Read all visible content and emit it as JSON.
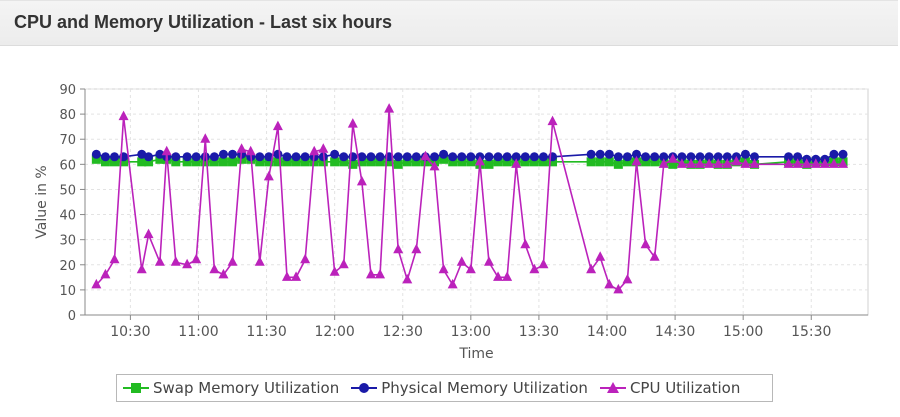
{
  "panel": {
    "title": "CPU and Memory Utilization - Last six hours"
  },
  "colors": {
    "swap": "#22bb22",
    "physical": "#1a1aa8",
    "cpu": "#bb22bb",
    "grid": "#e3e3e3",
    "axis": "#888888",
    "text": "#555555"
  },
  "chart_data": {
    "type": "line",
    "xlabel": "Time",
    "ylabel": "Value in %",
    "ylim": [
      0,
      90
    ],
    "yticks": [
      0,
      10,
      20,
      30,
      40,
      50,
      60,
      70,
      80,
      90
    ],
    "xlim": [
      "10:10",
      "15:55"
    ],
    "xticks": [
      "10:30",
      "11:00",
      "11:30",
      "12:00",
      "12:30",
      "13:00",
      "13:30",
      "14:00",
      "14:30",
      "15:00",
      "15:30"
    ],
    "grid": true,
    "legend_position": "bottom",
    "series": [
      {
        "name": "Swap Memory Utilization",
        "marker": "square",
        "color": "#22bb22",
        "x": [
          "10:15",
          "10:19",
          "10:23",
          "10:27",
          "10:35",
          "10:38",
          "10:43",
          "10:46",
          "10:50",
          "10:55",
          "10:59",
          "11:03",
          "11:07",
          "11:11",
          "11:15",
          "11:19",
          "11:23",
          "11:27",
          "11:31",
          "11:35",
          "11:39",
          "11:43",
          "11:47",
          "11:51",
          "11:55",
          "12:00",
          "12:04",
          "12:08",
          "12:12",
          "12:16",
          "12:20",
          "12:24",
          "12:28",
          "12:32",
          "12:36",
          "12:40",
          "12:44",
          "12:48",
          "12:52",
          "12:56",
          "13:00",
          "13:04",
          "13:08",
          "13:12",
          "13:16",
          "13:20",
          "13:24",
          "13:28",
          "13:32",
          "13:36",
          "13:53",
          "13:57",
          "14:01",
          "14:05",
          "14:09",
          "14:13",
          "14:17",
          "14:21",
          "14:25",
          "14:29",
          "14:33",
          "14:37",
          "14:41",
          "14:45",
          "14:49",
          "14:53",
          "14:57",
          "15:01",
          "15:05",
          "15:20",
          "15:24",
          "15:28",
          "15:32",
          "15:36",
          "15:40",
          "15:44"
        ],
        "values": [
          62,
          61,
          61,
          61,
          61,
          61,
          62,
          62,
          61,
          61,
          61,
          61,
          61,
          61,
          61,
          62,
          62,
          61,
          61,
          61,
          61,
          61,
          61,
          61,
          61,
          61,
          61,
          60,
          61,
          61,
          61,
          61,
          60,
          61,
          61,
          61,
          61,
          62,
          61,
          61,
          61,
          60,
          60,
          61,
          61,
          61,
          61,
          61,
          61,
          61,
          61,
          61,
          61,
          60,
          61,
          61,
          61,
          61,
          61,
          60,
          61,
          60,
          60,
          61,
          60,
          60,
          61,
          61,
          60,
          61,
          61,
          60,
          61,
          61,
          61,
          61
        ]
      },
      {
        "name": "Physical Memory Utilization",
        "marker": "circle",
        "color": "#1a1aa8",
        "x": [
          "10:15",
          "10:19",
          "10:23",
          "10:27",
          "10:35",
          "10:38",
          "10:43",
          "10:46",
          "10:50",
          "10:55",
          "10:59",
          "11:03",
          "11:07",
          "11:11",
          "11:15",
          "11:19",
          "11:23",
          "11:27",
          "11:31",
          "11:35",
          "11:39",
          "11:43",
          "11:47",
          "11:51",
          "11:55",
          "12:00",
          "12:04",
          "12:08",
          "12:12",
          "12:16",
          "12:20",
          "12:24",
          "12:28",
          "12:32",
          "12:36",
          "12:40",
          "12:44",
          "12:48",
          "12:52",
          "12:56",
          "13:00",
          "13:04",
          "13:08",
          "13:12",
          "13:16",
          "13:20",
          "13:24",
          "13:28",
          "13:32",
          "13:36",
          "13:53",
          "13:57",
          "14:01",
          "14:05",
          "14:09",
          "14:13",
          "14:17",
          "14:21",
          "14:25",
          "14:29",
          "14:33",
          "14:37",
          "14:41",
          "14:45",
          "14:49",
          "14:53",
          "14:57",
          "15:01",
          "15:05",
          "15:20",
          "15:24",
          "15:28",
          "15:32",
          "15:36",
          "15:40",
          "15:44"
        ],
        "values": [
          64,
          63,
          63,
          63,
          64,
          63,
          64,
          63,
          63,
          63,
          63,
          63,
          63,
          64,
          64,
          64,
          63,
          63,
          63,
          64,
          63,
          63,
          63,
          63,
          63,
          64,
          63,
          63,
          63,
          63,
          63,
          63,
          63,
          63,
          63,
          63,
          63,
          64,
          63,
          63,
          63,
          63,
          63,
          63,
          63,
          63,
          63,
          63,
          63,
          63,
          64,
          64,
          64,
          63,
          63,
          64,
          63,
          63,
          63,
          63,
          63,
          63,
          63,
          63,
          63,
          63,
          63,
          64,
          63,
          63,
          63,
          62,
          62,
          62,
          64,
          64
        ]
      },
      {
        "name": "CPU Utilization",
        "marker": "triangle",
        "color": "#bb22bb",
        "x": [
          "10:15",
          "10:19",
          "10:23",
          "10:27",
          "10:35",
          "10:38",
          "10:43",
          "10:46",
          "10:50",
          "10:55",
          "10:59",
          "11:03",
          "11:07",
          "11:11",
          "11:15",
          "11:19",
          "11:23",
          "11:27",
          "11:31",
          "11:35",
          "11:39",
          "11:43",
          "11:47",
          "11:51",
          "11:55",
          "12:00",
          "12:04",
          "12:08",
          "12:12",
          "12:16",
          "12:20",
          "12:24",
          "12:28",
          "12:32",
          "12:36",
          "12:40",
          "12:44",
          "12:48",
          "12:52",
          "12:56",
          "13:00",
          "13:04",
          "13:08",
          "13:12",
          "13:16",
          "13:20",
          "13:24",
          "13:28",
          "13:32",
          "13:36",
          "13:53",
          "13:57",
          "14:01",
          "14:05",
          "14:09",
          "14:13",
          "14:17",
          "14:21",
          "14:25",
          "14:29",
          "14:33",
          "14:37",
          "14:41",
          "14:45",
          "14:49",
          "14:53",
          "14:57",
          "15:01",
          "15:05",
          "15:20",
          "15:24",
          "15:28",
          "15:32",
          "15:36",
          "15:40",
          "15:44"
        ],
        "values": [
          12,
          16,
          22,
          79,
          18,
          32,
          21,
          65,
          21,
          20,
          22,
          70,
          18,
          16,
          21,
          66,
          65,
          21,
          55,
          75,
          15,
          15,
          22,
          65,
          66,
          17,
          20,
          76,
          53,
          16,
          16,
          82,
          26,
          14,
          26,
          63,
          59,
          18,
          12,
          21,
          18,
          61,
          21,
          15,
          15,
          60,
          28,
          18,
          20,
          77,
          18,
          23,
          12,
          10,
          14,
          61,
          28,
          23,
          60,
          62,
          60,
          60,
          60,
          60,
          60,
          60,
          61,
          60,
          60,
          60,
          60,
          60,
          60,
          60,
          60,
          60
        ]
      }
    ]
  }
}
